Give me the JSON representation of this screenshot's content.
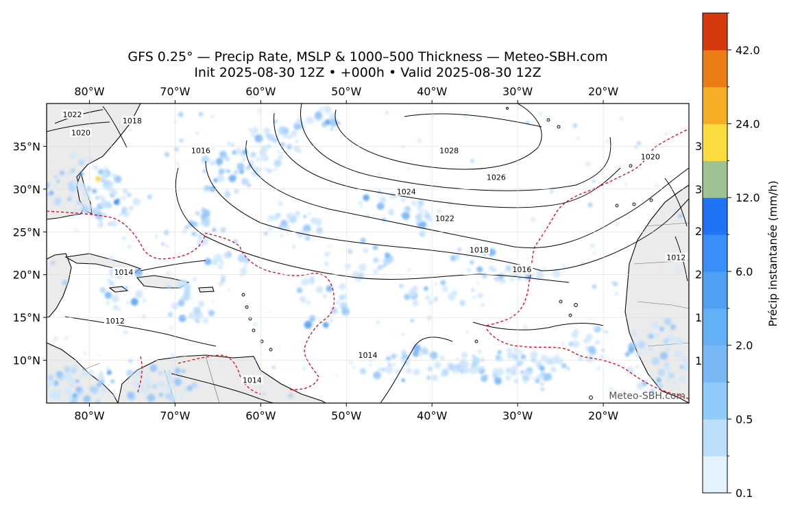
{
  "header": {
    "title": "GFS 0.25° — Precip Rate, MSLP & 1000–500 Thickness — Meteo-SBH.com",
    "subtitle": "Init 2025-08-30 12Z • +000h • Valid 2025-08-30 12Z"
  },
  "map": {
    "lon_min": -85,
    "lon_max": -10,
    "lat_min": 5,
    "lat_max": 40,
    "lon_ticks": [
      {
        "value": -80,
        "label": "80°W"
      },
      {
        "value": -70,
        "label": "70°W"
      },
      {
        "value": -60,
        "label": "60°W"
      },
      {
        "value": -50,
        "label": "50°W"
      },
      {
        "value": -40,
        "label": "40°W"
      },
      {
        "value": -30,
        "label": "30°W"
      },
      {
        "value": -20,
        "label": "20°W"
      }
    ],
    "lat_ticks": [
      {
        "value": 35,
        "label": "35°N"
      },
      {
        "value": 30,
        "label": "30°N"
      },
      {
        "value": 25,
        "label": "25°N"
      },
      {
        "value": 20,
        "label": "20°N"
      },
      {
        "value": 15,
        "label": "15°N"
      },
      {
        "value": 10,
        "label": "10°N"
      }
    ],
    "watermark": "Meteo-SBH.com",
    "isobar_labels": [
      {
        "text": "1028",
        "lon": -38,
        "lat": 34.5
      },
      {
        "text": "1026",
        "lon": -32.5,
        "lat": 31.4
      },
      {
        "text": "1024",
        "lon": -43,
        "lat": 29.7
      },
      {
        "text": "1022",
        "lon": -38.5,
        "lat": 26.6
      },
      {
        "text": "1018",
        "lon": -34.5,
        "lat": 22.9
      },
      {
        "text": "1016",
        "lon": -29.5,
        "lat": 20.6
      },
      {
        "text": "1016",
        "lon": -67,
        "lat": 34.5
      },
      {
        "text": "1014",
        "lon": -76,
        "lat": 20.3
      },
      {
        "text": "1014",
        "lon": -47.5,
        "lat": 10.6
      },
      {
        "text": "1014",
        "lon": -61,
        "lat": 7.7
      },
      {
        "text": "1012",
        "lon": -77,
        "lat": 14.6
      },
      {
        "text": "1012",
        "lon": -11.5,
        "lat": 22.0
      },
      {
        "text": "1020",
        "lon": -14.5,
        "lat": 33.8
      },
      {
        "text": "1020",
        "lon": -81,
        "lat": 36.6
      },
      {
        "text": "1022",
        "lon": -82,
        "lat": 38.7
      },
      {
        "text": "1018",
        "lon": -75,
        "lat": 38.0
      }
    ],
    "thickness_labels_partial": [
      "3",
      "3",
      "2",
      "2",
      "1",
      "1"
    ],
    "colors": {
      "land": "#ebebeb",
      "ocean": "#ffffff",
      "isobar": "#000000",
      "thickness": "#e8000b",
      "watermark": "#555555"
    }
  },
  "colorbar": {
    "label": "Précip instantanée (mm/h)",
    "tick_labels": [
      "0.1",
      "0.5",
      "2.0",
      "6.0",
      "12.0",
      "24.0",
      "42.0"
    ],
    "colors": [
      "#e3f2fd",
      "#bbdefb",
      "#90caf9",
      "#7ab8f5",
      "#64b0f6",
      "#4f9ff5",
      "#3a8ef7",
      "#1f74f5",
      "#9fc294",
      "#fbdd3f",
      "#f5ad25",
      "#eb7d14",
      "#d53a0f"
    ]
  }
}
